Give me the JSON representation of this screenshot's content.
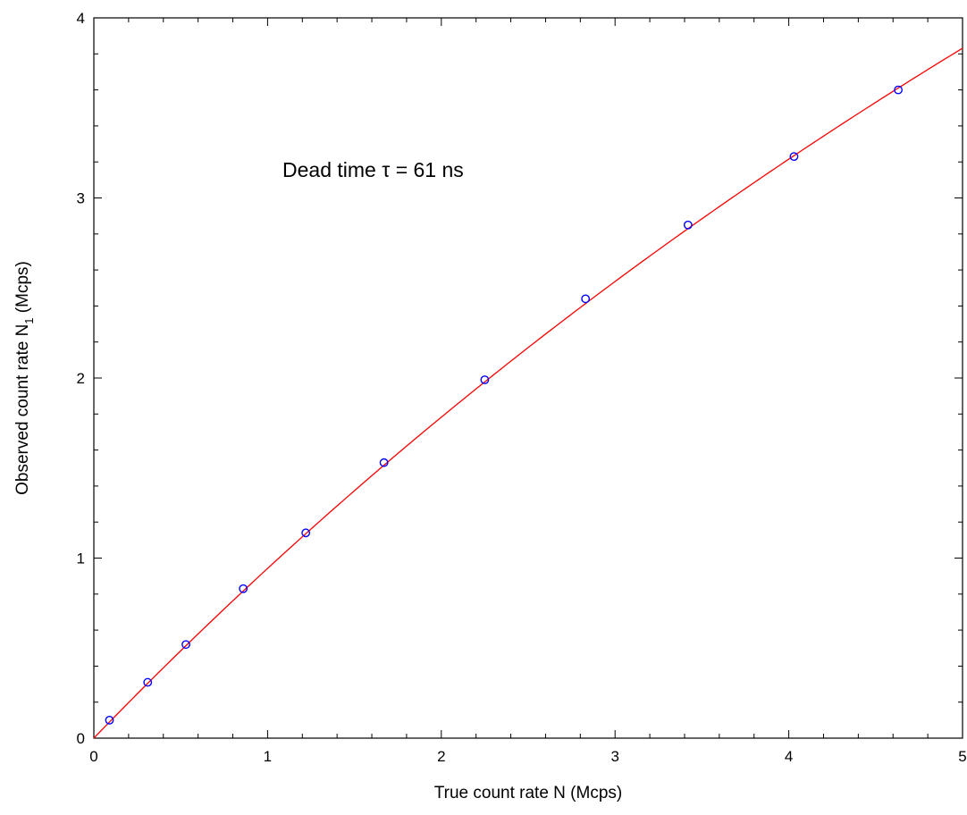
{
  "chart_data": {
    "type": "scatter",
    "xlabel": "True count rate N (Mcps)",
    "ylabel_main": "Observed count rate N",
    "ylabel_sub": "1",
    "ylabel_unit": " (Mcps)",
    "annotation": "Dead time τ = 61 ns",
    "xlim": [
      0,
      5
    ],
    "ylim": [
      0,
      4
    ],
    "xticks": [
      0,
      1,
      2,
      3,
      4,
      5
    ],
    "yticks": [
      0,
      1,
      2,
      3,
      4
    ],
    "grid": false,
    "series": [
      {
        "kind": "points",
        "color": "#0000ff",
        "marker": "open-circle",
        "x": [
          0.09,
          0.31,
          0.53,
          0.86,
          1.22,
          1.67,
          2.25,
          2.83,
          3.42,
          4.03,
          4.63
        ],
        "y": [
          0.1,
          0.31,
          0.52,
          0.83,
          1.14,
          1.53,
          1.99,
          2.44,
          2.85,
          3.23,
          3.6
        ]
      },
      {
        "kind": "fit-curve",
        "color": "#ff0000",
        "model": "N1 = N / (1 + N·τ)",
        "tau_ns": 61
      }
    ]
  }
}
